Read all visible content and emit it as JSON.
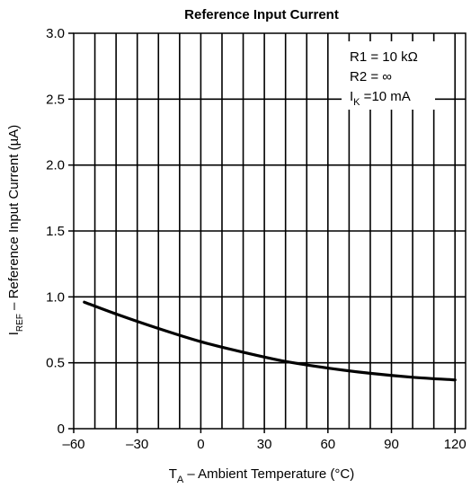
{
  "chart_data": {
    "type": "line",
    "title": "Reference Input Current",
    "xlabel": {
      "main": "T",
      "sub": "A",
      "rest": " – Ambient Temperature (°C)"
    },
    "ylabel": {
      "main": "I",
      "sub": "REF",
      "rest": " – Reference Input Current (µA)"
    },
    "xlim": [
      -60,
      125
    ],
    "ylim": [
      0,
      3.0
    ],
    "x_ticks": [
      -60,
      -30,
      0,
      30,
      60,
      90,
      120
    ],
    "x_tick_labels": [
      "–60",
      "–30",
      "0",
      "30",
      "60",
      "90",
      "120"
    ],
    "y_ticks": [
      0,
      0.5,
      1.0,
      1.5,
      2.0,
      2.5,
      3.0
    ],
    "y_tick_labels": [
      "0",
      "0.5",
      "1.0",
      "1.5",
      "2.0",
      "2.5",
      "3.0"
    ],
    "x_grid_step": 10,
    "y_grid_step": 0.5,
    "grid": true,
    "legend": {
      "placement": "top-right",
      "lines": [
        {
          "main": "R1 = 10 kΩ",
          "sub": "",
          "rest": ""
        },
        {
          "main": "R2 = ∞",
          "sub": "",
          "rest": ""
        },
        {
          "main": "I",
          "sub": "K",
          "rest": " =10 mA"
        }
      ]
    },
    "series": [
      {
        "color": "#000000",
        "x": [
          -55,
          -40,
          -20,
          0,
          20,
          40,
          60,
          80,
          100,
          120
        ],
        "y": [
          0.96,
          0.87,
          0.76,
          0.66,
          0.58,
          0.51,
          0.46,
          0.42,
          0.39,
          0.37
        ]
      }
    ]
  }
}
